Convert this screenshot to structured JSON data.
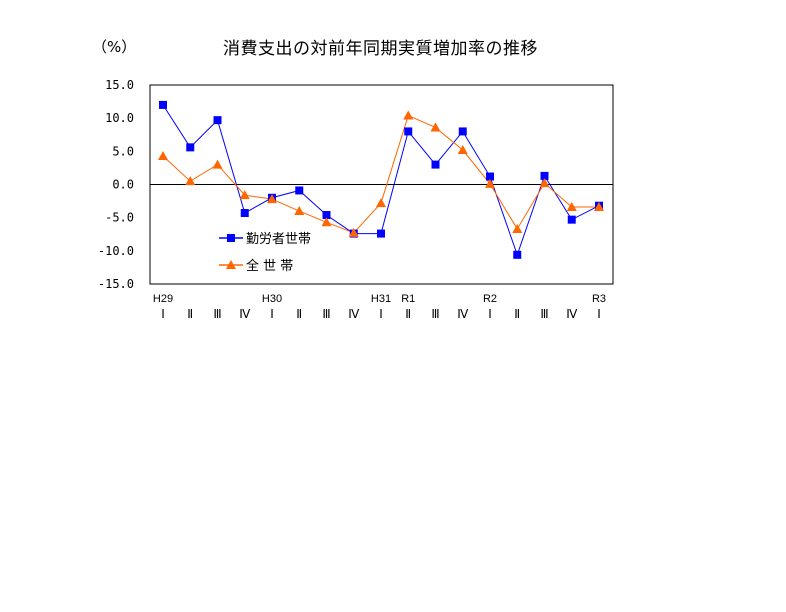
{
  "chart_data": {
    "type": "line",
    "title": "消費支出の対前年同期実質増加率の推移",
    "ylabel": "（%）",
    "xlabel": "",
    "ylim": [
      -15.0,
      15.0
    ],
    "yticks": [
      "15.0",
      "10.0",
      "5.0",
      "0.0",
      "-5.0",
      "-10.0",
      "-15.0"
    ],
    "grid": false,
    "legend_position": "inside-lower-left",
    "categories": [
      "H29 I",
      "H29 II",
      "H29 III",
      "H29 IV",
      "H30 I",
      "H30 II",
      "H30 III",
      "H30 IV",
      "H31 I",
      "R1 II",
      "R1 III",
      "R1 IV",
      "R2 I",
      "R2 II",
      "R2 III",
      "R2 IV",
      "R3 I"
    ],
    "quarter_labels": [
      "Ⅰ",
      "Ⅱ",
      "Ⅲ",
      "Ⅳ",
      "Ⅰ",
      "Ⅱ",
      "Ⅲ",
      "Ⅳ",
      "Ⅰ",
      "Ⅱ",
      "Ⅲ",
      "Ⅳ",
      "Ⅰ",
      "Ⅱ",
      "Ⅲ",
      "Ⅳ",
      "Ⅰ"
    ],
    "year_labels": [
      {
        "index": 0,
        "label": "H29"
      },
      {
        "index": 4,
        "label": "H30"
      },
      {
        "index": 8,
        "label": "H31"
      },
      {
        "index": 9,
        "label": "R1"
      },
      {
        "index": 12,
        "label": "R2"
      },
      {
        "index": 16,
        "label": "R3"
      }
    ],
    "series": [
      {
        "name": "勤労者世帯",
        "color": "#0000FF",
        "marker": "square",
        "values": [
          12.0,
          5.6,
          9.7,
          -4.3,
          -2.0,
          -0.9,
          -4.6,
          -7.4,
          -7.4,
          8.0,
          3.0,
          8.0,
          1.2,
          -10.6,
          1.3,
          -5.3,
          -3.2
        ]
      },
      {
        "name": "全 世 帯",
        "color": "#FF6600",
        "marker": "triangle",
        "values": [
          4.3,
          0.5,
          3.0,
          -1.6,
          -2.2,
          -4.0,
          -5.7,
          -7.3,
          -2.8,
          10.4,
          8.6,
          5.2,
          0.1,
          -6.7,
          0.2,
          -3.4,
          -3.4
        ]
      }
    ]
  },
  "legend": {
    "item0": "勤労者世帯",
    "item1": "全 世 帯"
  }
}
